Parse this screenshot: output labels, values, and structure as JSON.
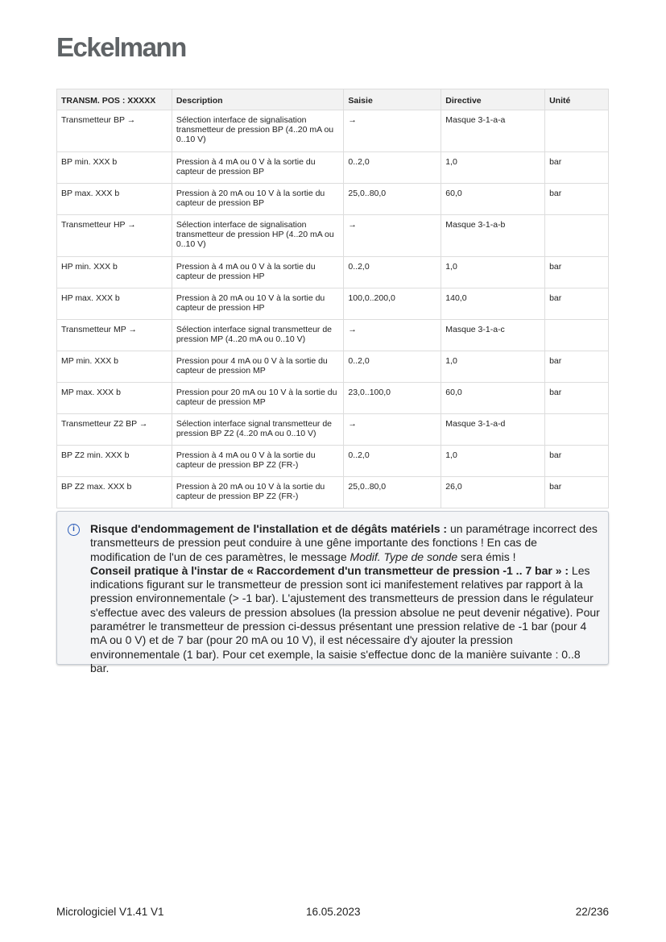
{
  "logo": "Eckelmann",
  "table": {
    "headers": [
      "TRANSM. POS : XXXXX",
      "Description",
      "Saisie",
      "Directive",
      "Unité"
    ],
    "rows": [
      [
        "Transmetteur BP →",
        "Sélection interface de signalisation transmetteur de pression BP (4..20 mA ou 0..10 V)",
        "→",
        "Masque 3-1-a-a",
        ""
      ],
      [
        "BP min. XXX b",
        "Pression à 4 mA ou 0 V à la sortie du capteur de pression BP",
        "0..2,0",
        "1,0",
        "bar"
      ],
      [
        "BP max. XXX b",
        "Pression à 20 mA ou 10 V à la sortie du capteur de pression BP",
        "25,0..80,0",
        "60,0",
        "bar"
      ],
      [
        "Transmetteur HP →",
        "Sélection interface de signalisation transmetteur de pression HP (4..20 mA ou 0..10 V)",
        "→",
        "Masque 3-1-a-b",
        ""
      ],
      [
        "HP min. XXX b",
        "Pression à 4 mA ou 0 V à la sortie du capteur de pression HP",
        "0..2,0",
        "1,0",
        "bar"
      ],
      [
        "HP max. XXX b",
        "Pression à 20 mA ou 10 V à la sortie du capteur de pression HP",
        "100,0..200,0",
        "140,0",
        "bar"
      ],
      [
        "Transmetteur MP →",
        "Sélection interface signal transmetteur de pression MP (4..20 mA ou 0..10 V)",
        "→",
        "Masque 3-1-a-c",
        ""
      ],
      [
        "MP min. XXX b",
        "Pression pour 4 mA ou 0 V à la sortie du capteur de pression MP",
        "0..2,0",
        "1,0",
        "bar"
      ],
      [
        "MP max. XXX b",
        "Pression pour 20 mA ou 10 V à la sortie du capteur de pression MP",
        "23,0..100,0",
        "60,0",
        "bar"
      ],
      [
        "Transmetteur Z2 BP →",
        "Sélection interface signal transmetteur de pression BP Z2 (4..20 mA ou 0..10 V)",
        "→",
        "Masque 3-1-a-d",
        ""
      ],
      [
        "BP Z2 min. XXX b",
        "Pression à 4 mA ou 0 V à la sortie du capteur de pression BP Z2 (FR-)",
        "0..2,0",
        "1,0",
        "bar"
      ],
      [
        "BP Z2 max. XXX b",
        "Pression à 20 mA ou 10 V à la sortie du capteur de pression BP Z2 (FR-)",
        "25,0..80,0",
        "26,0",
        "bar"
      ]
    ]
  },
  "note": {
    "icon": "info-icon",
    "b1": "Risque d'endommagement de l'installation et de dégâts matériels :",
    "t1": " un paramétrage incorrect des transmetteurs de pression peut conduire à une gêne importante des fonctions ! En cas de modification de l'un de ces paramètres, le message ",
    "i1": "Modif. Type de sonde",
    "t2": " sera émis !",
    "b2": "Conseil pratique à l'instar de « Raccordement d'un transmetteur de pression -1 .. 7 bar » :",
    "t3": " Les indications figurant sur le transmetteur de pression sont ici manifestement relatives par rapport à la pression environnementale (> -1 bar). L'ajustement des transmetteurs de pression dans le régulateur s'effectue avec des valeurs de pression absolues (la pression absolue ne peut devenir négative). Pour paramétrer le transmetteur de pression ci-dessus présentant une pression relative de -1 bar (pour 4 mA ou 0 V) et de 7 bar (pour 20 mA ou 10 V), il est nécessaire d'y ajouter la pression environnementale (1 bar). Pour cet exemple, la saisie s'effectue donc de la manière suivante : 0..8 bar."
  },
  "footer": {
    "left": "Micrologiciel V1.41 V1",
    "center": "16.05.2023",
    "right": "22/236"
  }
}
